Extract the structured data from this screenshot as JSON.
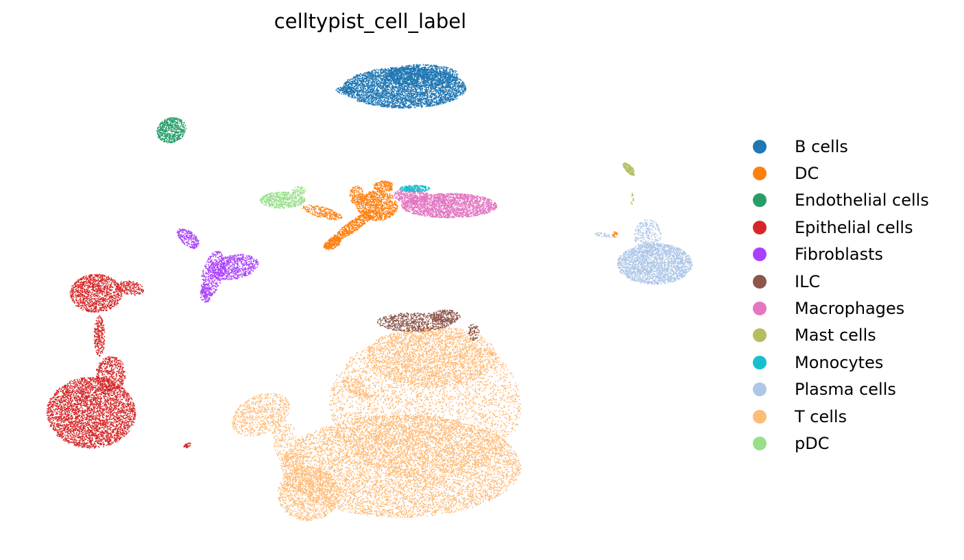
{
  "chart_data": {
    "type": "scatter",
    "title": "celltypist_cell_label",
    "xlabel": "",
    "ylabel": "",
    "grid": false,
    "axes_visible": false,
    "legend_placement": "right",
    "series": [
      {
        "name": "B cells",
        "color": "#1f77b4"
      },
      {
        "name": "DC",
        "color": "#ff7f0e"
      },
      {
        "name": "Endothelial cells",
        "color": "#279e68"
      },
      {
        "name": "Epithelial cells",
        "color": "#d62728"
      },
      {
        "name": "Fibroblasts",
        "color": "#aa40fc"
      },
      {
        "name": "ILC",
        "color": "#8c564b"
      },
      {
        "name": "Macrophages",
        "color": "#e377c2"
      },
      {
        "name": "Mast cells",
        "color": "#b5bd61"
      },
      {
        "name": "Monocytes",
        "color": "#17becf"
      },
      {
        "name": "Plasma cells",
        "color": "#aec7e8"
      },
      {
        "name": "T cells",
        "color": "#ffbb78"
      },
      {
        "name": "pDC",
        "color": "#98df8a"
      }
    ]
  }
}
